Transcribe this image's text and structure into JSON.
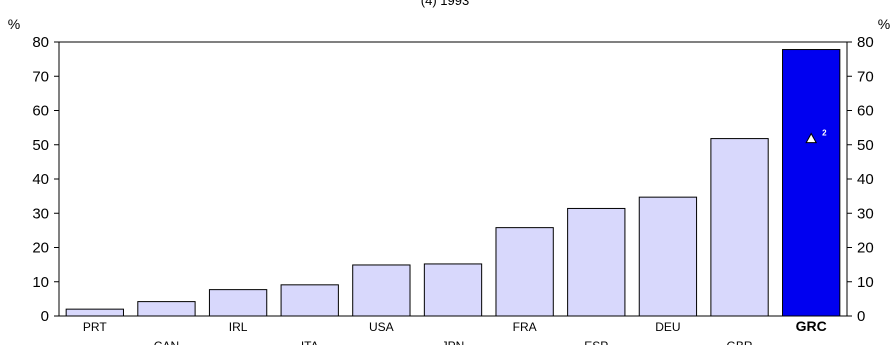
{
  "chart_data": {
    "type": "bar",
    "title": "(4) 1993",
    "unit_left": "%",
    "unit_right": "%",
    "categories": [
      "PRT",
      "CAN",
      "IRL",
      "ITA",
      "USA",
      "JPN",
      "FRA",
      "ESP",
      "DEU",
      "GBR",
      "GRC"
    ],
    "values": [
      2,
      4.2,
      7.7,
      9.1,
      14.9,
      15.2,
      25.8,
      31.4,
      34.7,
      51.8,
      77.8
    ],
    "highlight": "GRC",
    "marker": {
      "category": "GRC",
      "value": 51.8,
      "label": "2"
    },
    "ylim": [
      0,
      80
    ],
    "yticks": [
      0,
      10,
      20,
      30,
      40,
      50,
      60,
      70,
      80
    ],
    "grid": false,
    "colors": {
      "bar": "#d8d8fc",
      "highlight": "#0000f0",
      "stroke": "#000000"
    }
  }
}
